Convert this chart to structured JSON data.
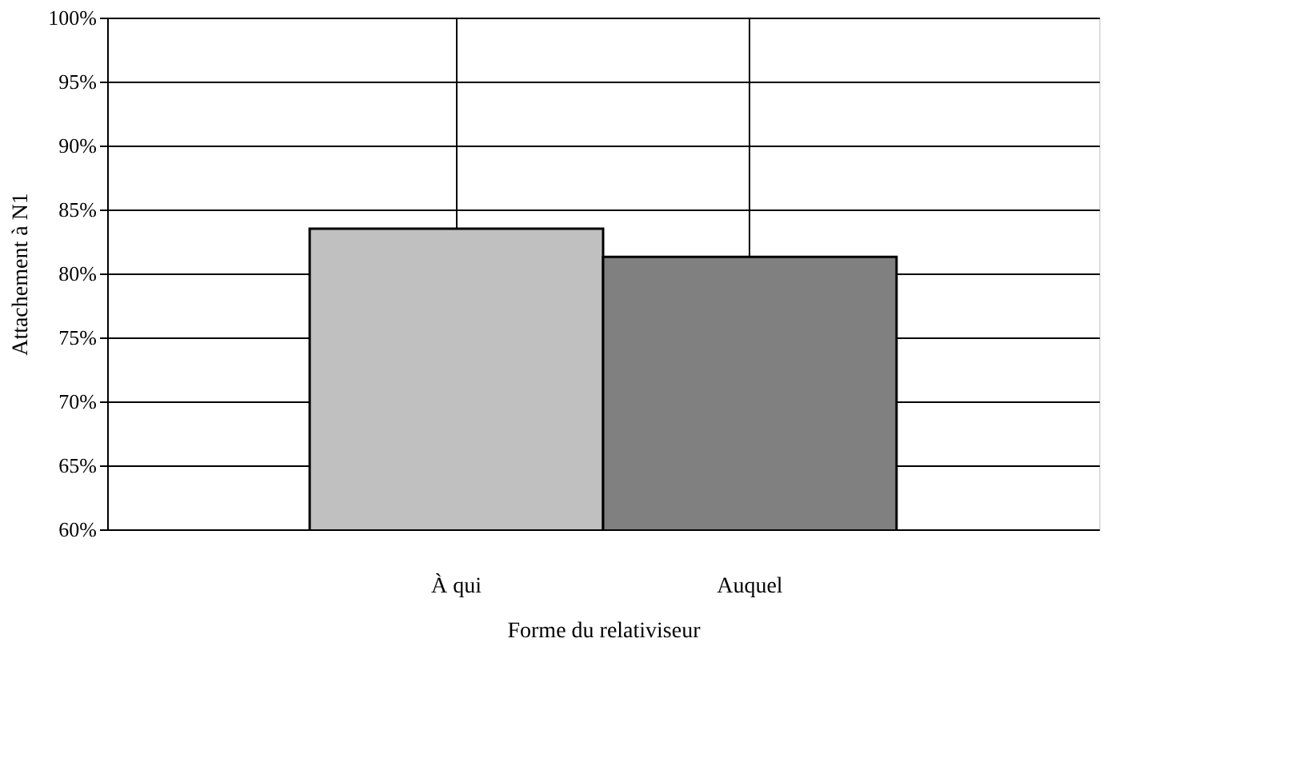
{
  "chart_data": {
    "type": "bar",
    "xlabel": "Forme du relativiseur",
    "ylabel": "Attachement à N1",
    "categories": [
      "À qui",
      "Auquel"
    ],
    "values": [
      83.5,
      81.3
    ],
    "colors": [
      "#c0c0c0",
      "#808080"
    ],
    "ylim": [
      60,
      100
    ],
    "yticks": [
      {
        "value": 60,
        "label": "60%"
      },
      {
        "value": 65,
        "label": "65%"
      },
      {
        "value": 70,
        "label": "70%"
      },
      {
        "value": 75,
        "label": "75%"
      },
      {
        "value": 80,
        "label": "80%"
      },
      {
        "value": 85,
        "label": "85%"
      },
      {
        "value": 90,
        "label": "90%"
      },
      {
        "value": 95,
        "label": "95%"
      },
      {
        "value": 100,
        "label": "100%"
      }
    ],
    "grid": true
  }
}
